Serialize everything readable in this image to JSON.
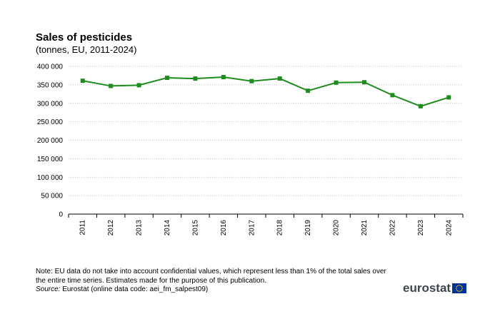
{
  "chart_data": {
    "type": "line",
    "title": "Sales of pesticides",
    "subtitle": "(tonnes, EU, 2011-2024)",
    "xlabel": "",
    "ylabel": "",
    "categories": [
      "2011",
      "2012",
      "2013",
      "2014",
      "2015",
      "2016",
      "2017",
      "2018",
      "2019",
      "2020",
      "2021",
      "2022",
      "2023",
      "2024"
    ],
    "series": [
      {
        "values": [
          361000,
          347000,
          349000,
          369000,
          367000,
          371000,
          360000,
          367000,
          334000,
          356000,
          357000,
          322000,
          292000,
          316000
        ]
      }
    ],
    "y_ticks": [
      0,
      50000,
      100000,
      150000,
      200000,
      250000,
      300000,
      350000,
      400000
    ],
    "y_tick_labels": [
      "0",
      "50 000",
      "100 000",
      "150 000",
      "200 000",
      "250 000",
      "300 000",
      "350 000",
      "400 000"
    ],
    "ylim": [
      0,
      400000
    ],
    "grid": "horizontal dotted",
    "legend": "none",
    "line_color": "#1f8c1f"
  },
  "notes": {
    "note": "Note: EU data do not take into account confidential values, which represent less than 1% of the total sales over the entire time series. Estimates made for the purpose of this publication.",
    "source_label": "Source:",
    "source_text": " Eurostat (online data code: aei_fm_salpest09)"
  },
  "logo": {
    "text": "eurostat",
    "flag_color": "#003399",
    "star_color": "#ffcc00"
  }
}
